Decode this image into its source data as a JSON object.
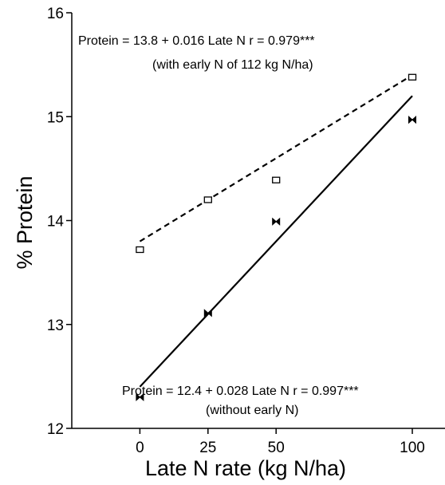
{
  "chart_data": {
    "type": "scatter",
    "xlabel": "Late N rate (kg N/ha)",
    "ylabel": "% Protein",
    "xlim": [
      -25,
      112
    ],
    "ylim": [
      12,
      16
    ],
    "xticks": [
      0,
      25,
      50,
      100
    ],
    "xtick_labels": [
      "0",
      "25",
      "50",
      "100"
    ],
    "yticks": [
      12,
      13,
      14,
      15,
      16
    ],
    "ytick_labels": [
      "12",
      "13",
      "14",
      "15",
      "16"
    ],
    "grid": false,
    "series": [
      {
        "marker": "open-square",
        "line_style": "dashed",
        "x": [
          0,
          25,
          50,
          100
        ],
        "y": [
          13.72,
          14.2,
          14.39,
          15.38
        ],
        "fit": {
          "intercept": 13.8,
          "slope": 0.016
        }
      },
      {
        "marker": "bowtie",
        "line_style": "solid",
        "x": [
          0,
          25,
          50,
          100
        ],
        "y": [
          12.3,
          13.11,
          13.99,
          14.97
        ],
        "fit": {
          "intercept": 12.4,
          "slope": 0.028
        }
      }
    ],
    "annotations": [
      {
        "line1": "Protein = 13.8 + 0.016 Late N   r = 0.979***",
        "line2": "(with early N of 112 kg N/ha)"
      },
      {
        "line1": "Protein = 12.4 + 0.028 Late N   r = 0.997***",
        "line2": "(without early N)"
      }
    ]
  }
}
